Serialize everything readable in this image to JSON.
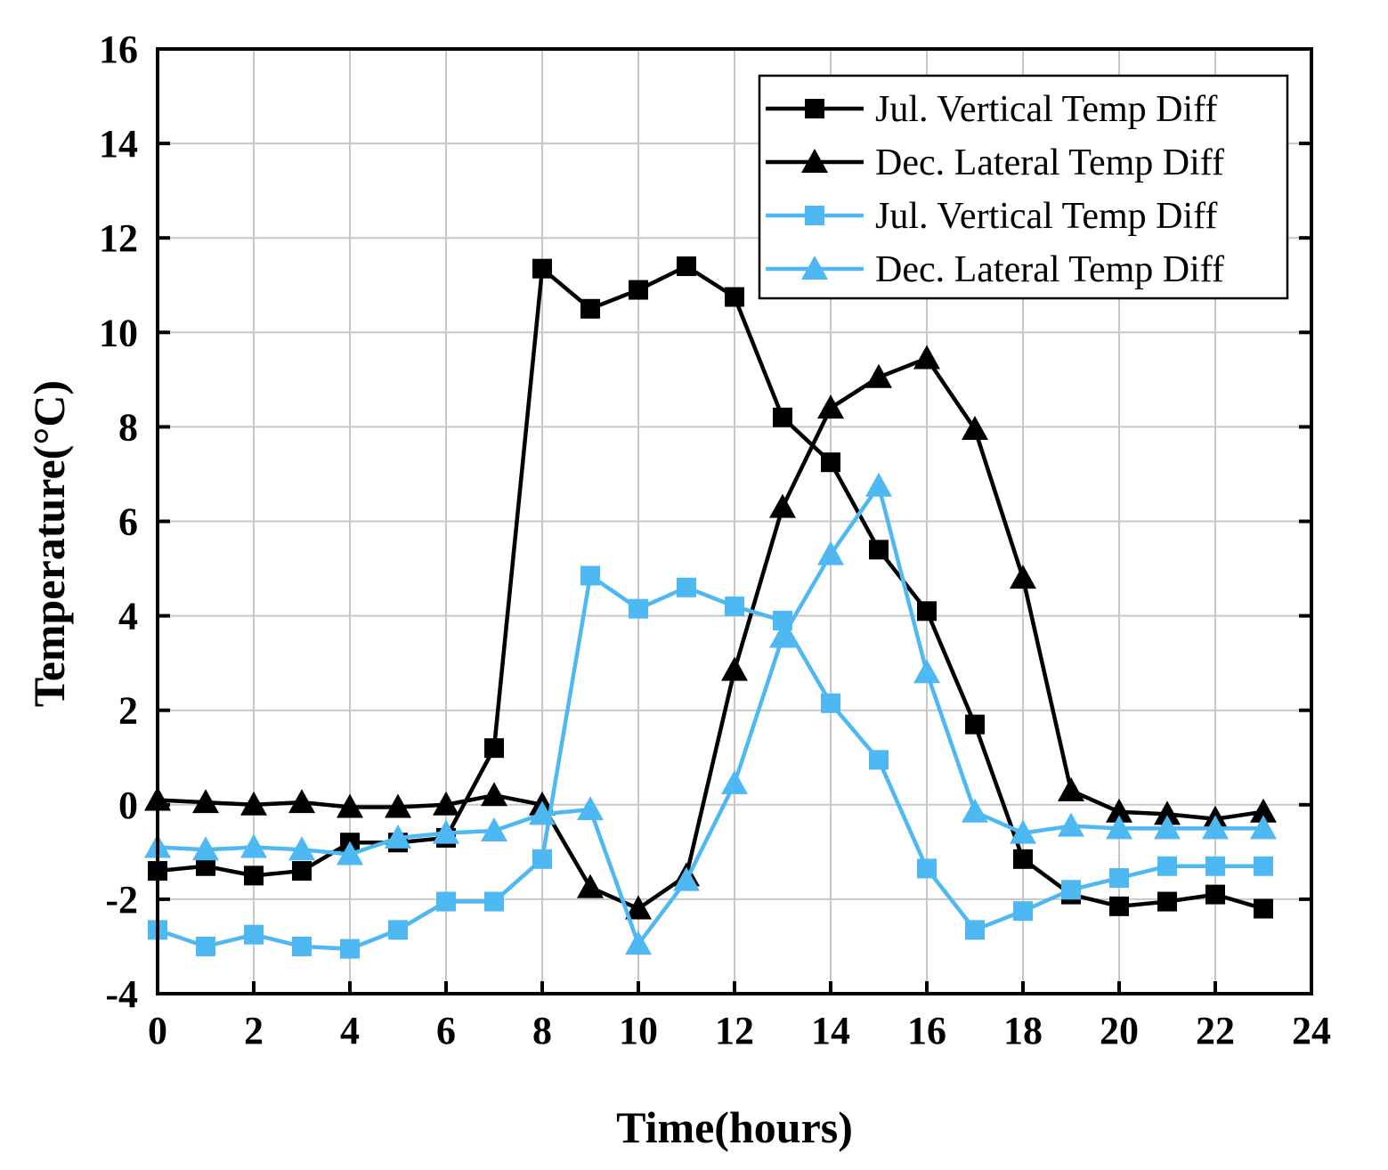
{
  "chart_data": {
    "type": "line",
    "xlabel": "Time(hours)",
    "ylabel": "Temperature(°C)",
    "xlim": [
      0,
      24
    ],
    "ylim": [
      -4,
      16
    ],
    "xticks": [
      0,
      2,
      4,
      6,
      8,
      10,
      12,
      14,
      16,
      18,
      20,
      22,
      24
    ],
    "yticks": [
      -4,
      -2,
      0,
      2,
      4,
      6,
      8,
      10,
      12,
      14,
      16
    ],
    "grid": true,
    "legend_position": "top-right",
    "x": [
      0,
      1,
      2,
      3,
      4,
      5,
      6,
      7,
      8,
      9,
      10,
      11,
      12,
      13,
      14,
      15,
      16,
      17,
      18,
      19,
      20,
      21,
      22,
      23
    ],
    "series": [
      {
        "name": "Jul. Vertical Temp Diff",
        "color": "#000000",
        "marker": "square",
        "values": [
          -1.4,
          -1.3,
          -1.5,
          -1.4,
          -0.8,
          -0.8,
          -0.7,
          1.2,
          11.35,
          10.5,
          10.9,
          11.4,
          10.75,
          8.2,
          7.25,
          5.4,
          4.1,
          1.7,
          -1.15,
          -1.9,
          -2.15,
          -2.05,
          -1.9,
          -2.2
        ]
      },
      {
        "name": "Dec. Lateral Temp Diff",
        "color": "#000000",
        "marker": "triangle",
        "values": [
          0.1,
          0.05,
          0.0,
          0.05,
          -0.05,
          -0.05,
          0.0,
          0.2,
          0.0,
          -1.75,
          -2.2,
          -1.5,
          2.85,
          6.3,
          8.4,
          9.05,
          9.45,
          7.95,
          4.8,
          0.3,
          -0.15,
          -0.2,
          -0.3,
          -0.15
        ]
      },
      {
        "name": "Jul. Vertical Temp Diff",
        "color": "#4DB8F2",
        "marker": "square",
        "values": [
          -2.65,
          -3.0,
          -2.75,
          -3.0,
          -3.05,
          -2.65,
          -2.05,
          -2.05,
          -1.15,
          4.85,
          4.15,
          4.6,
          4.2,
          3.9,
          2.15,
          0.95,
          -1.35,
          -2.65,
          -2.25,
          -1.8,
          -1.55,
          -1.3,
          -1.3,
          -1.3
        ]
      },
      {
        "name": "Dec. Lateral Temp Diff",
        "color": "#4DB8F2",
        "marker": "triangle",
        "values": [
          -0.9,
          -0.95,
          -0.9,
          -0.95,
          -1.05,
          -0.7,
          -0.6,
          -0.55,
          -0.2,
          -0.1,
          -2.95,
          -1.6,
          0.45,
          3.55,
          5.3,
          6.75,
          2.8,
          -0.15,
          -0.6,
          -0.45,
          -0.5,
          -0.5,
          -0.5,
          -0.5
        ]
      }
    ]
  }
}
